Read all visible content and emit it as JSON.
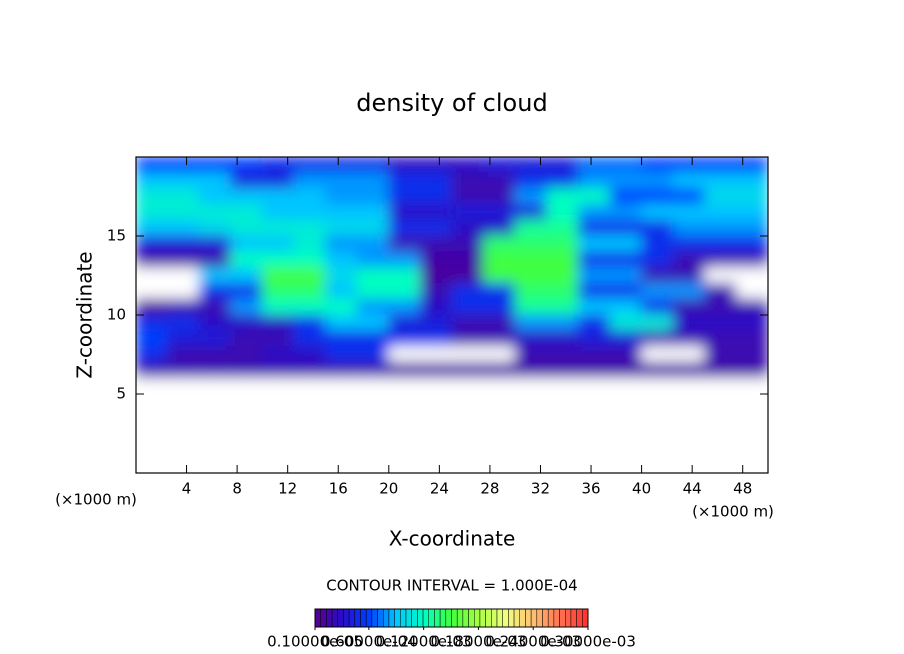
{
  "chart_data": {
    "type": "heatmap",
    "title": "density of cloud",
    "x_label": "X-coordinate",
    "y_label": "Z-coordinate",
    "x_unit": "(×1000 m)",
    "y_unit": "(×1000 m)",
    "annotation": "CONTOUR INTERVAL = 1.000E-04",
    "xlim": [
      0,
      50
    ],
    "ylim": [
      0,
      20
    ],
    "xticks": [
      4,
      8,
      12,
      16,
      20,
      24,
      28,
      32,
      36,
      40,
      44,
      48
    ],
    "yticks": [
      5,
      10,
      15
    ],
    "x": [
      1.25,
      3.75,
      6.25,
      8.75,
      11.25,
      13.75,
      16.25,
      18.75,
      21.25,
      23.75,
      26.25,
      28.75,
      31.25,
      33.75,
      36.25,
      38.75,
      41.25,
      43.75,
      46.25,
      48.75
    ],
    "y": [
      19.5,
      18.5,
      17.5,
      16.5,
      15.5,
      14.5,
      13.5,
      12.5,
      11.5,
      10.5,
      9.5,
      8.5,
      7.5,
      6.5,
      5.5
    ],
    "z": [
      [
        6e-05,
        6e-05,
        6e-05,
        6e-05,
        5e-05,
        5e-05,
        5e-05,
        5e-05,
        3e-05,
        3e-05,
        3e-05,
        4e-05,
        4e-05,
        4e-05,
        7e-05,
        7e-05,
        6e-05,
        6e-05,
        6e-05,
        6e-05
      ],
      [
        9e-05,
        9e-05,
        9e-05,
        4e-05,
        4e-05,
        8e-05,
        8e-05,
        8e-05,
        5e-05,
        5e-05,
        2e-05,
        2e-05,
        5e-05,
        5e-05,
        8e-05,
        8e-05,
        8e-05,
        9e-05,
        9e-05,
        9e-05
      ],
      [
        0.00011,
        0.00011,
        9e-05,
        9e-05,
        9e-05,
        9e-05,
        8e-05,
        8e-05,
        5e-05,
        5e-05,
        2e-05,
        2e-05,
        8e-05,
        0.00012,
        0.00012,
        6e-05,
        6e-05,
        6e-05,
        0.0001,
        0.0001
      ],
      [
        0.00011,
        0.00011,
        0.00011,
        0.00011,
        9e-05,
        9e-05,
        9e-05,
        9e-05,
        3e-05,
        3e-05,
        4e-05,
        4e-05,
        4e-05,
        0.00012,
        8e-05,
        8e-05,
        9e-05,
        9e-05,
        9e-05,
        9e-05
      ],
      [
        9e-05,
        9e-05,
        0.0001,
        0.00011,
        0.00011,
        0.00011,
        0.0001,
        0.0001,
        5e-05,
        5e-05,
        3e-05,
        3e-05,
        0.00013,
        0.00013,
        5e-05,
        5e-05,
        5e-05,
        8e-05,
        8e-05,
        8e-05
      ],
      [
        4e-05,
        4e-05,
        4e-05,
        9e-05,
        9e-05,
        0.00011,
        8e-05,
        8e-05,
        2e-05,
        2e-05,
        2e-05,
        0.00014,
        0.00014,
        0.00014,
        9e-05,
        9e-05,
        5e-05,
        5e-05,
        5e-05,
        5e-05
      ],
      [
        1.5e-05,
        1.5e-05,
        1.5e-05,
        0.00012,
        0.00012,
        0.00012,
        9e-05,
        8e-05,
        8e-05,
        1.5e-05,
        1.5e-05,
        0.00015,
        0.00015,
        0.00015,
        5e-05,
        5e-05,
        5e-05,
        2e-05,
        2e-05,
        2e-05
      ],
      [
        0,
        0,
        9e-05,
        9e-05,
        0.00015,
        0.00015,
        0.0001,
        0.00012,
        0.00012,
        1e-05,
        1e-05,
        0.00015,
        0.00015,
        0.00015,
        8e-05,
        8e-05,
        2e-05,
        2e-05,
        0,
        0
      ],
      [
        0,
        0,
        5e-05,
        5e-05,
        0.00014,
        0.00014,
        9e-05,
        0.00012,
        0.00012,
        2e-05,
        5e-05,
        5e-05,
        0.00014,
        0.00014,
        5e-05,
        5e-05,
        8e-05,
        8e-05,
        2e-05,
        0
      ],
      [
        1e-05,
        2e-05,
        2e-05,
        8e-05,
        0.00012,
        0.00012,
        0.00012,
        8e-05,
        8e-05,
        3e-05,
        5e-05,
        5e-05,
        0.00013,
        0.00013,
        9e-05,
        9e-05,
        5e-05,
        2e-05,
        2e-05,
        2e-05
      ],
      [
        5e-05,
        5e-05,
        3e-05,
        3e-05,
        3e-05,
        5e-05,
        9e-05,
        9e-05,
        4e-05,
        4e-05,
        2e-05,
        2e-05,
        8e-05,
        8e-05,
        5e-05,
        0.00011,
        0.00011,
        3e-05,
        3e-05,
        3e-05
      ],
      [
        6e-05,
        4e-05,
        4e-05,
        2e-05,
        2e-05,
        5e-05,
        5e-05,
        5e-05,
        5e-05,
        5e-05,
        2e-05,
        2e-05,
        3e-05,
        3e-05,
        4e-05,
        4e-05,
        2e-05,
        2e-05,
        2e-05,
        2e-05
      ],
      [
        5e-05,
        2e-05,
        2e-05,
        2e-05,
        3e-05,
        3e-05,
        5e-05,
        5e-05,
        0,
        0,
        0,
        0,
        2e-05,
        2e-05,
        2e-05,
        2e-05,
        0,
        0,
        2e-05,
        2e-05
      ],
      [
        2e-05,
        2e-05,
        2e-05,
        2e-05,
        2e-05,
        2e-05,
        2e-05,
        2e-05,
        1.5e-05,
        1.5e-05,
        1.5e-05,
        1.5e-05,
        1.5e-05,
        1.5e-05,
        1.5e-05,
        1.5e-05,
        1.5e-05,
        1.5e-05,
        1.5e-05,
        1.5e-05
      ],
      [
        0,
        0,
        0,
        0,
        0,
        0,
        0,
        0,
        0,
        0,
        0,
        0,
        0,
        0,
        0,
        0,
        0,
        0,
        0,
        0
      ]
    ],
    "clim": [
      1e-06,
      0.0003
    ],
    "colorbar_ticks": [
      {
        "value": 1e-06,
        "label": "0.10000e-05"
      },
      {
        "value": 6e-05,
        "label": "0.60000e-04"
      },
      {
        "value": 0.00012,
        "label": "0.12000e-03"
      },
      {
        "value": 0.00018,
        "label": "0.18000e-03"
      },
      {
        "value": 0.00024,
        "label": "0.24000e-03"
      },
      {
        "value": 0.0003,
        "label": "0.30000e-03"
      }
    ],
    "colors": [
      "#58008c",
      "#2a0cc8",
      "#0040ff",
      "#00c8ff",
      "#00ffc0",
      "#40ff40",
      "#a8ff40",
      "#f0ff80",
      "#ffc070",
      "#ff7050",
      "#ff3030"
    ]
  }
}
